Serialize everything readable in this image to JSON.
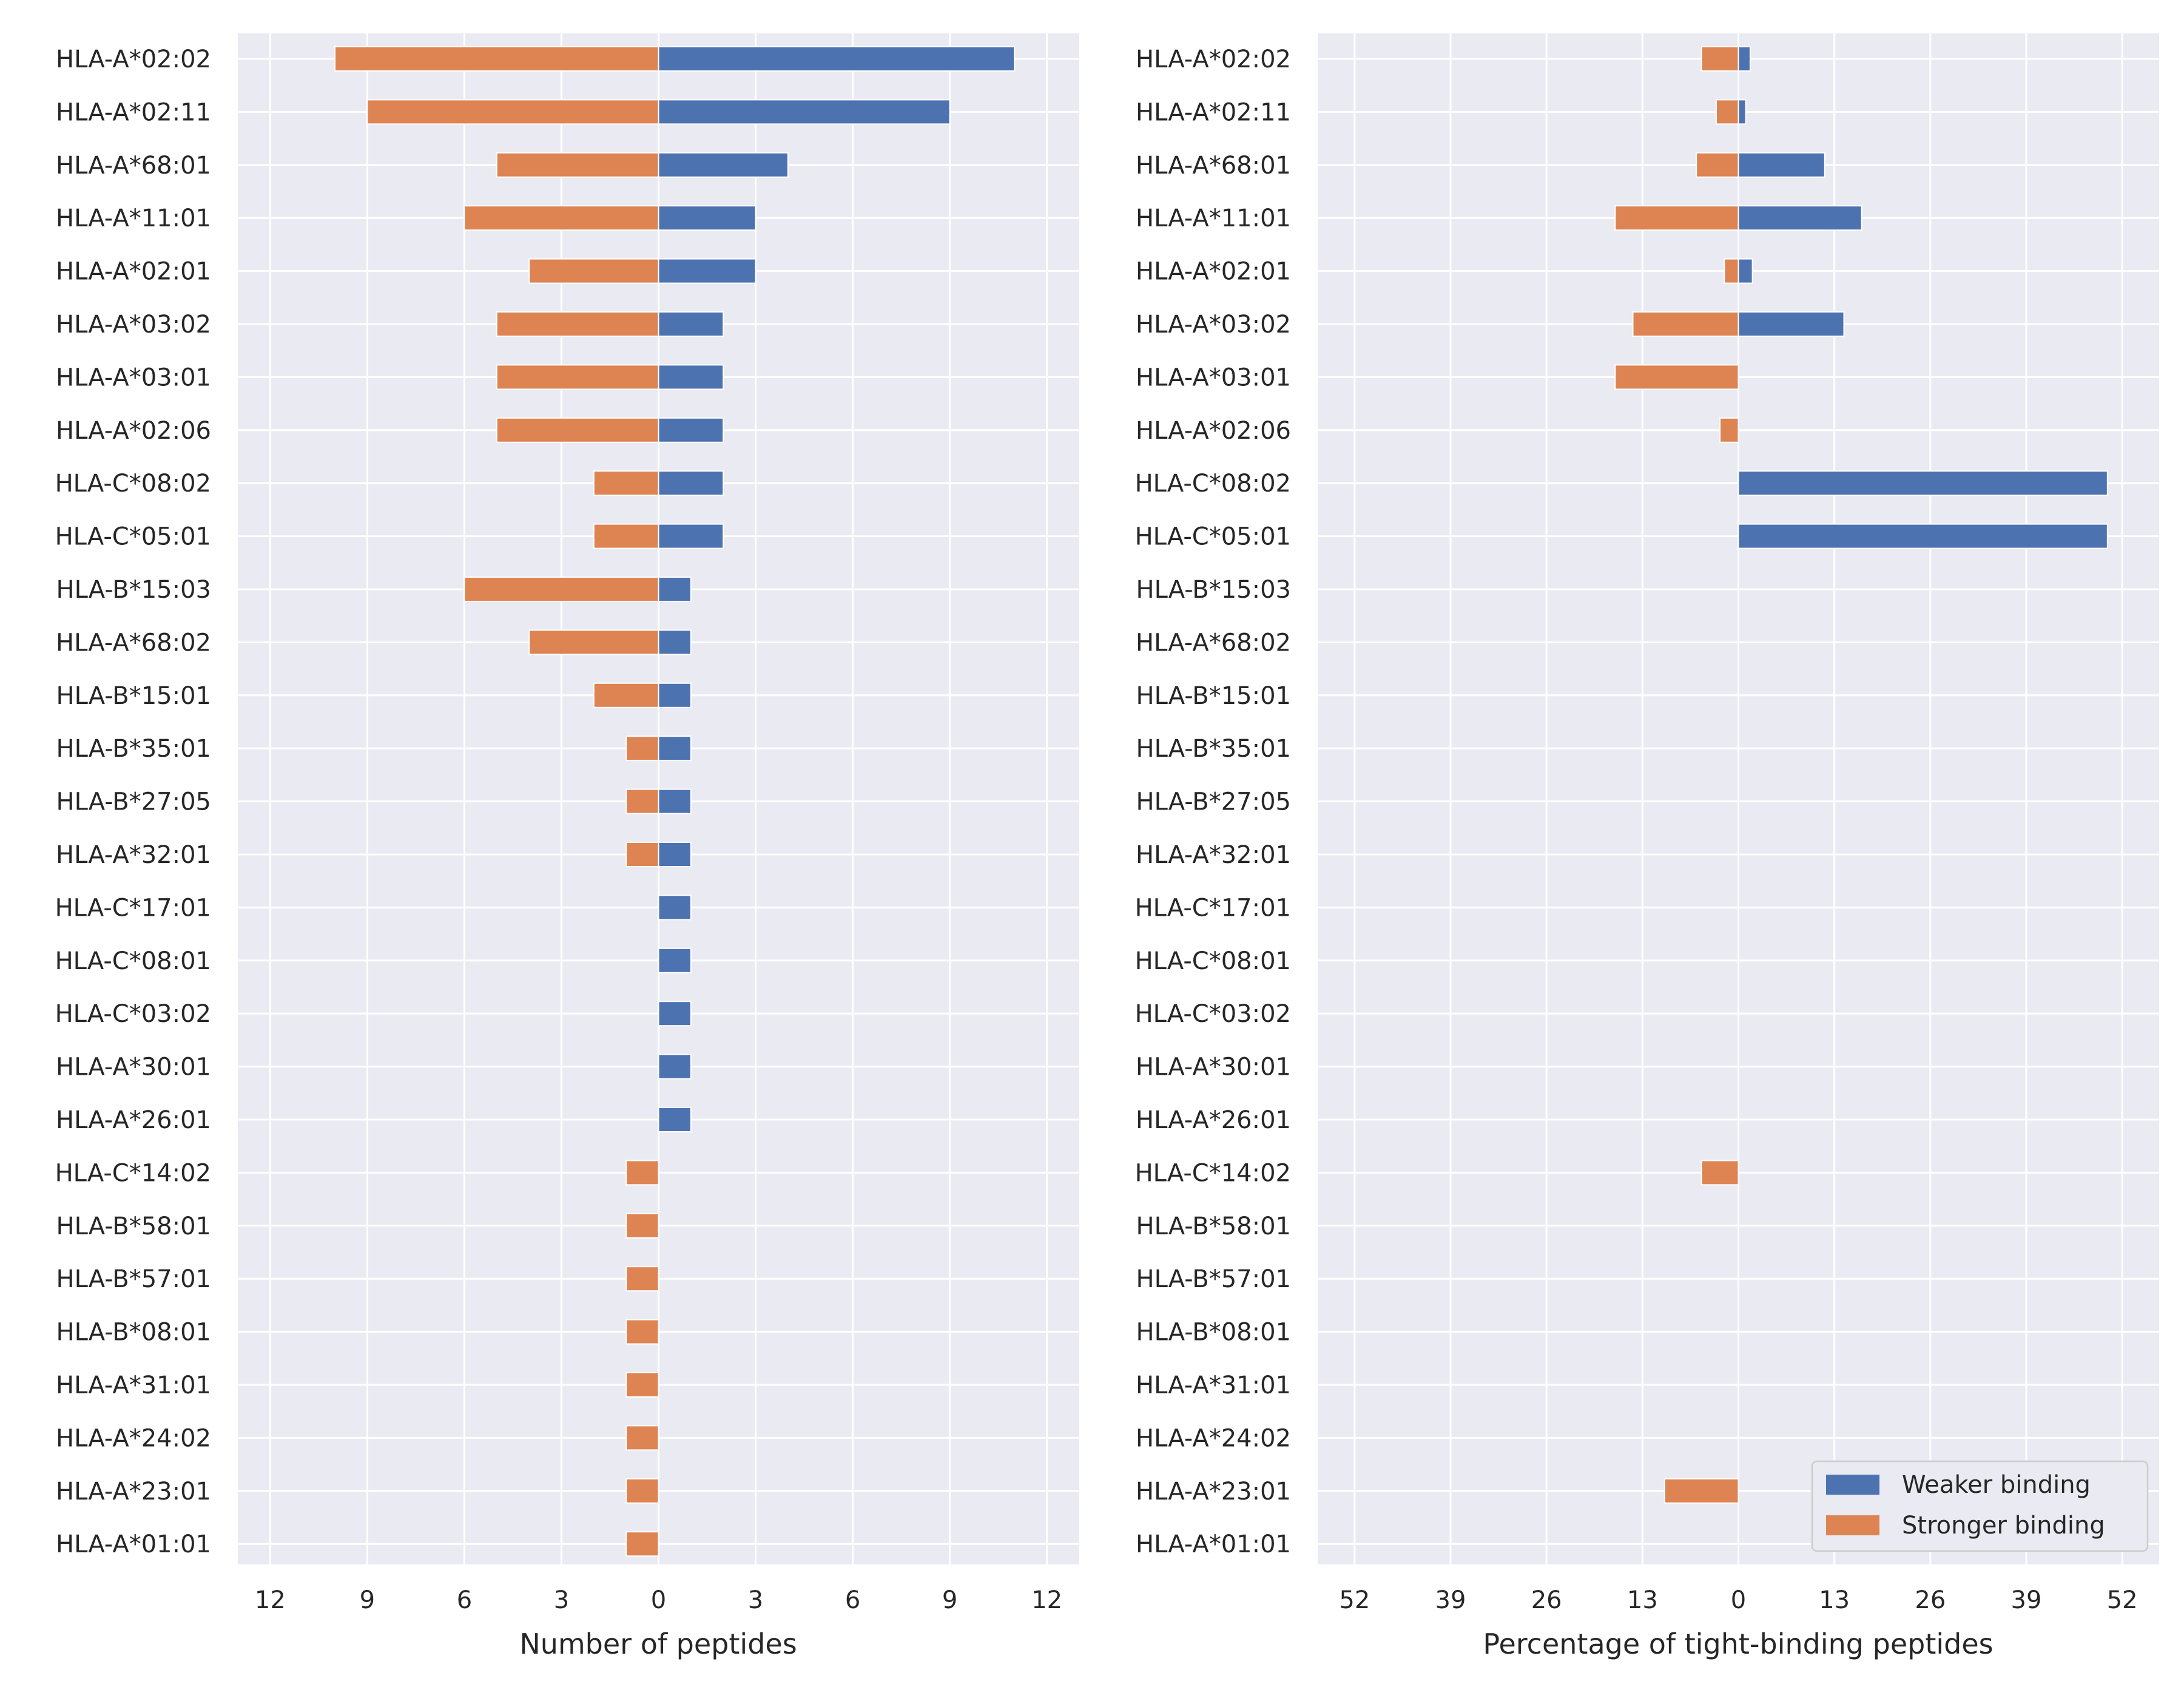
{
  "chart_data": [
    {
      "type": "bar",
      "orientation": "horizontal-diverging",
      "xlabel": "Number of peptides",
      "ylabel": "",
      "xlim": [
        -13,
        13
      ],
      "xticks": [
        -12,
        -9,
        -6,
        -3,
        0,
        3,
        6,
        9,
        12
      ],
      "xtick_labels": [
        "12",
        "9",
        "6",
        "3",
        "0",
        "3",
        "6",
        "9",
        "12"
      ],
      "grid": true,
      "categories": [
        "HLA-A*02:02",
        "HLA-A*02:11",
        "HLA-A*68:01",
        "HLA-A*11:01",
        "HLA-A*02:01",
        "HLA-A*03:02",
        "HLA-A*03:01",
        "HLA-A*02:06",
        "HLA-C*08:02",
        "HLA-C*05:01",
        "HLA-B*15:03",
        "HLA-A*68:02",
        "HLA-B*15:01",
        "HLA-B*35:01",
        "HLA-B*27:05",
        "HLA-A*32:01",
        "HLA-C*17:01",
        "HLA-C*08:01",
        "HLA-C*03:02",
        "HLA-A*30:01",
        "HLA-A*26:01",
        "HLA-C*14:02",
        "HLA-B*58:01",
        "HLA-B*57:01",
        "HLA-B*08:01",
        "HLA-A*31:01",
        "HLA-A*24:02",
        "HLA-A*23:01",
        "HLA-A*01:01"
      ],
      "series": [
        {
          "name": "Weaker binding",
          "color": "#4c72b0",
          "values": [
            11,
            9,
            4,
            3,
            3,
            2,
            2,
            2,
            2,
            2,
            1,
            1,
            1,
            1,
            1,
            1,
            1,
            1,
            1,
            1,
            1,
            0,
            0,
            0,
            0,
            0,
            0,
            0,
            0
          ]
        },
        {
          "name": "Stronger binding",
          "color": "#dd8452",
          "values": [
            10,
            9,
            5,
            6,
            4,
            5,
            5,
            5,
            2,
            2,
            6,
            4,
            2,
            1,
            1,
            1,
            0,
            0,
            0,
            0,
            0,
            1,
            1,
            1,
            1,
            1,
            1,
            1,
            1
          ]
        }
      ]
    },
    {
      "type": "bar",
      "orientation": "horizontal-diverging",
      "xlabel": "Percentage of tight-binding peptides",
      "ylabel": "",
      "xlim": [
        -57,
        57
      ],
      "xticks": [
        -52,
        -39,
        -26,
        -13,
        0,
        13,
        26,
        39,
        52
      ],
      "xtick_labels": [
        "52",
        "39",
        "26",
        "13",
        "0",
        "13",
        "26",
        "39",
        "52"
      ],
      "grid": true,
      "legend_position": "bottom-right",
      "categories": [
        "HLA-A*02:02",
        "HLA-A*02:11",
        "HLA-A*68:01",
        "HLA-A*11:01",
        "HLA-A*02:01",
        "HLA-A*03:02",
        "HLA-A*03:01",
        "HLA-A*02:06",
        "HLA-C*08:02",
        "HLA-C*05:01",
        "HLA-B*15:03",
        "HLA-A*68:02",
        "HLA-B*15:01",
        "HLA-B*35:01",
        "HLA-B*27:05",
        "HLA-A*32:01",
        "HLA-C*17:01",
        "HLA-C*08:01",
        "HLA-C*03:02",
        "HLA-A*30:01",
        "HLA-A*26:01",
        "HLA-C*14:02",
        "HLA-B*58:01",
        "HLA-B*57:01",
        "HLA-B*08:01",
        "HLA-A*31:01",
        "HLA-A*24:02",
        "HLA-A*23:01",
        "HLA-A*01:01"
      ],
      "series": [
        {
          "name": "Weaker binding",
          "color": "#4c72b0",
          "values": [
            1.6,
            1,
            11.7,
            16.7,
            1.9,
            14.3,
            0,
            0,
            50,
            50,
            0,
            0,
            0,
            0,
            0,
            0,
            0,
            0,
            0,
            0,
            0,
            0,
            0,
            0,
            0,
            0,
            0,
            0,
            0
          ]
        },
        {
          "name": "Stronger binding",
          "color": "#dd8452",
          "values": [
            5,
            3,
            5.7,
            16.7,
            1.9,
            14.3,
            16.7,
            2.5,
            0,
            0,
            0,
            0,
            0,
            0,
            0,
            0,
            0,
            0,
            0,
            0,
            0,
            5,
            0,
            0,
            0,
            0,
            0,
            10,
            0
          ]
        }
      ]
    }
  ]
}
